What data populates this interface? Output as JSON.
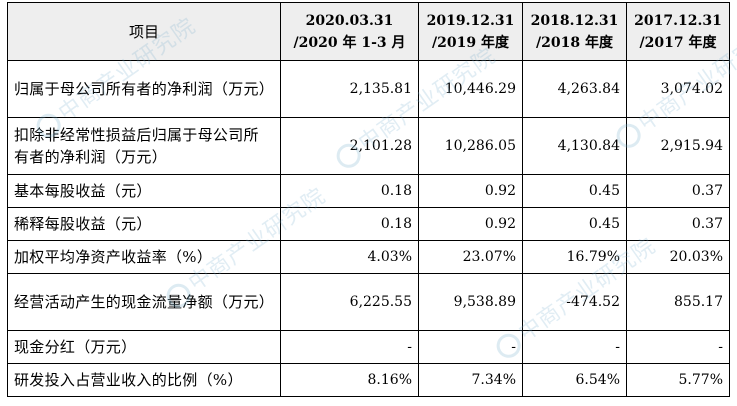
{
  "table": {
    "header": {
      "item": "项目",
      "columns": [
        {
          "line1": "2020.03.31",
          "line2": "/2020 年 1-3 月"
        },
        {
          "line1": "2019.12.31",
          "line2": "/2019 年度"
        },
        {
          "line1": "2018.12.31",
          "line2": "/2018 年度"
        },
        {
          "line1": "2017.12.31",
          "line2": "/2017 年度"
        }
      ]
    },
    "rows": [
      {
        "label": "归属于母公司所有者的净利润（万元）",
        "values": [
          "2,135.81",
          "10,446.29",
          "4,263.84",
          "3,074.02"
        ]
      },
      {
        "label": "扣除非经常性损益后归属于母公司所有者的净利润（万元）",
        "values": [
          "2,101.28",
          "10,286.05",
          "4,130.84",
          "2,915.94"
        ]
      },
      {
        "label": "基本每股收益（元）",
        "values": [
          "0.18",
          "0.92",
          "0.45",
          "0.37"
        ]
      },
      {
        "label": "稀释每股收益（元）",
        "values": [
          "0.18",
          "0.92",
          "0.45",
          "0.37"
        ]
      },
      {
        "label": "加权平均净资产收益率（%）",
        "values": [
          "4.03%",
          "23.07%",
          "16.79%",
          "20.03%"
        ]
      },
      {
        "label": "经营活动产生的现金流量净额（万元）",
        "values": [
          "6,225.55",
          "9,538.89",
          "-474.52",
          "855.17"
        ]
      },
      {
        "label": "现金分红（万元）",
        "values": [
          "-",
          "-",
          "-",
          "-"
        ]
      },
      {
        "label": "研发投入占营业收入的比例（%）",
        "values": [
          "8.16%",
          "7.34%",
          "6.54%",
          "5.77%"
        ]
      }
    ]
  },
  "watermark": {
    "text": "中商产业研究院",
    "color": "#78afcd"
  }
}
